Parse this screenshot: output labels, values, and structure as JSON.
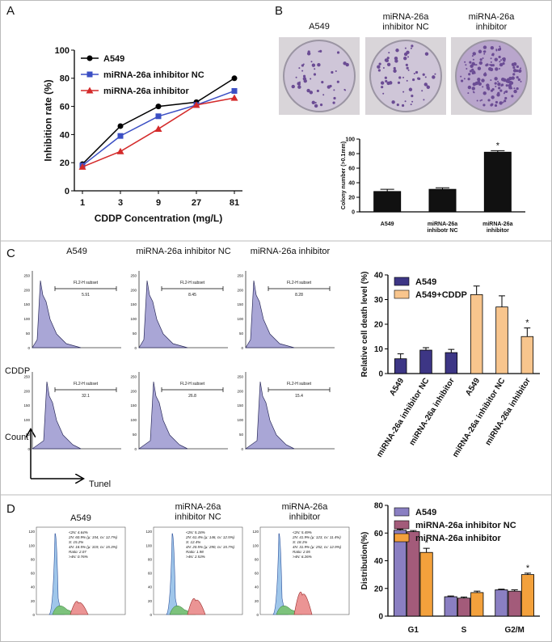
{
  "panels": [
    "A",
    "B",
    "C",
    "D"
  ],
  "photos": {
    "labels": [
      "A549",
      "miRNA-26a\ninhibitor NC",
      "miRNA-26a\ninhibitor"
    ]
  },
  "flow_c": {
    "columns": [
      "A549",
      "miRNA-26a inhibitor NC",
      "miRNA-26a inhibitor"
    ],
    "gate_label": "FL2-H subset",
    "gates": [
      [
        "5.91",
        "8.45",
        "8.28"
      ],
      [
        "32.1",
        "26.8",
        "15.4"
      ]
    ],
    "row_label": "CDDP",
    "y_axis": "Count",
    "x_axis": "Tunel",
    "yticks": [
      "0",
      "50",
      "100",
      "150",
      "200",
      "250"
    ]
  },
  "flow_d": {
    "columns": [
      "A549",
      "miRNA-26a\ninhibitor NC",
      "miRNA-26a\ninhibitor"
    ],
    "yticks": [
      "0",
      "20",
      "40",
      "60",
      "80",
      "100",
      "120"
    ],
    "stats": [
      [
        "<2N: 4.64%",
        "2N: 60.9%  (µ: 154, cv: 12.7%)",
        "S: 15.2%",
        "4N: 18.5%  (µ: 319, cv: 15.3%)",
        "Ratio: 2.07",
        ">4N: 0.76%"
      ],
      [
        "<2N: 5.18%",
        "2N: 61.4%  (µ: 146, cv: 12.5%)",
        "S: 12.4%",
        "4N: 20.5%  (µ: 290, cv: 15.7%)",
        "Ratio: 1.98",
        ">4N: 2.53%"
      ],
      [
        "<2N: 5.49%",
        "2N: 41.9%  (µ: 123, cv: 11.4%)",
        "S: 18.1%",
        "4N: 31.9%  (µ: 252, cv: 12.9%)",
        "Ratio: 2.05",
        ">4N: 6.26%"
      ]
    ]
  },
  "chart_data": [
    {
      "type": "line",
      "y_label": "Inhibition rate (%)",
      "x_label": "CDDP Concentration (mg/L)",
      "categories": [
        "1",
        "3",
        "9",
        "27",
        "81"
      ],
      "ylim": [
        0,
        100
      ],
      "yticks": [
        0,
        20,
        40,
        60,
        80,
        100
      ],
      "series": [
        {
          "name": "A549",
          "color": "#000000",
          "marker": "circle",
          "values": [
            19,
            46,
            60,
            63,
            80
          ]
        },
        {
          "name": "miRNA-26a inhibitor NC",
          "color": "#3b4fc4",
          "marker": "square",
          "values": [
            18,
            39,
            53,
            61,
            71
          ]
        },
        {
          "name": "miRNA-26a inhibitor",
          "color": "#d42a2a",
          "marker": "triangle",
          "values": [
            17,
            28,
            44,
            61,
            66
          ]
        }
      ]
    },
    {
      "type": "bar",
      "y_label": "Colony number (>0.1mm)",
      "categories": [
        "A549",
        "miRNA-26a\ninhibotr NC",
        "miRNA-26a\ninhibitor"
      ],
      "values": [
        28,
        31,
        82
      ],
      "errors": [
        3,
        2,
        2
      ],
      "significance": [
        null,
        null,
        "*"
      ],
      "color": "#111111",
      "ylim": [
        0,
        100
      ],
      "yticks": [
        0,
        20,
        40,
        60,
        80,
        100
      ]
    },
    {
      "type": "bar",
      "y_label": "Relative cell death level (%)",
      "categories": [
        "A549",
        "miRNA-26a inhibitor NC",
        "miRNA-26a inhibitor",
        "A549",
        "miRNA-26a inhibitor NC",
        "miRNA-26a inhibitor"
      ],
      "ylim": [
        0,
        40
      ],
      "yticks": [
        0,
        10,
        20,
        30,
        40
      ],
      "series": [
        {
          "name": "A549",
          "color": "#3d3685",
          "values": [
            6,
            9.5,
            8.5,
            null,
            null,
            null
          ],
          "errors": [
            2,
            1,
            1.3,
            null,
            null,
            null
          ],
          "significance": [
            null,
            null,
            null,
            null,
            null,
            null
          ]
        },
        {
          "name": "A549+CDDP",
          "color": "#f8c58d",
          "values": [
            null,
            null,
            null,
            32,
            27,
            15
          ],
          "errors": [
            null,
            null,
            null,
            3.5,
            4.5,
            3.5
          ],
          "significance": [
            null,
            null,
            null,
            null,
            null,
            "*"
          ]
        }
      ]
    },
    {
      "type": "bar",
      "y_label": "Distribution(%)",
      "categories": [
        "G1",
        "S",
        "G2/M"
      ],
      "ylim": [
        0,
        80
      ],
      "yticks": [
        0,
        20,
        40,
        60,
        80
      ],
      "series": [
        {
          "name": "A549",
          "color": "#8a7fc2",
          "values": [
            62,
            14,
            19
          ],
          "errors": [
            0.8,
            0.5,
            0.5
          ],
          "significance": [
            null,
            null,
            null
          ]
        },
        {
          "name": "miRNA-26a inhibitor NC",
          "color": "#a35b7a",
          "values": [
            61,
            13,
            18
          ],
          "errors": [
            0.8,
            0.8,
            1
          ],
          "significance": [
            null,
            null,
            null
          ]
        },
        {
          "name": "miRNA-26a inhibitor",
          "color": "#f3a13c",
          "values": [
            46,
            17,
            30
          ],
          "errors": [
            3,
            1,
            1
          ],
          "significance": [
            "*",
            null,
            "*"
          ]
        }
      ]
    }
  ]
}
